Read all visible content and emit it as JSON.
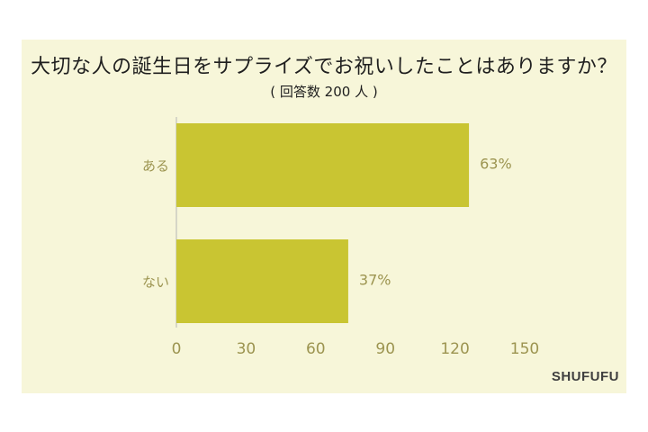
{
  "chart_data": {
    "type": "bar",
    "orientation": "horizontal",
    "title": "大切な人の誕生日をサプライズでお祝いしたことはありますか？",
    "subtitle": "( 回答数 200 人 )",
    "categories": [
      "ある",
      "ない"
    ],
    "values": [
      126,
      74
    ],
    "data_labels": [
      "63%",
      "37%"
    ],
    "xlim": [
      0,
      150
    ],
    "xticks": [
      "0",
      "30",
      "60",
      "90",
      "120",
      "150"
    ],
    "grid": false,
    "legend": "none"
  },
  "brand": "SHUFUFU",
  "colors": {
    "bar": "#c9c532",
    "background": "#f7f6d9",
    "axis_text": "#9c9450",
    "axis_line": "#b5b5b5"
  }
}
